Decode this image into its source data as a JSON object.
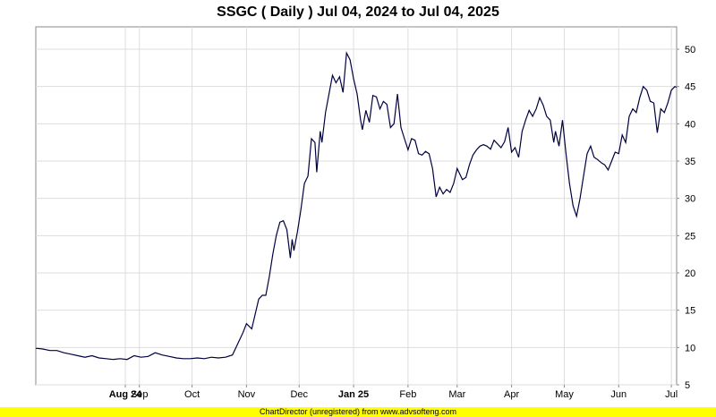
{
  "chart_data": {
    "type": "line",
    "title": "SSGC ( Daily ) Jul 04, 2024 to Jul 04, 2025",
    "xlabel": "",
    "ylabel": "",
    "ylim": [
      5,
      53
    ],
    "y_ticks": [
      5,
      10,
      15,
      20,
      25,
      30,
      35,
      40,
      45,
      50
    ],
    "x_ticks": [
      {
        "label": "Aug 24",
        "date": "2024-08-24",
        "bold": true
      },
      {
        "label": "Sep",
        "date": "2024-09-01",
        "bold": false
      },
      {
        "label": "Oct",
        "date": "2024-10-01",
        "bold": false
      },
      {
        "label": "Nov",
        "date": "2024-11-01",
        "bold": false
      },
      {
        "label": "Dec",
        "date": "2024-12-01",
        "bold": false
      },
      {
        "label": "Jan 25",
        "date": "2025-01-01",
        "bold": true
      },
      {
        "label": "Feb",
        "date": "2025-02-01",
        "bold": false
      },
      {
        "label": "Mar",
        "date": "2025-03-01",
        "bold": false
      },
      {
        "label": "Apr",
        "date": "2025-04-01",
        "bold": false
      },
      {
        "label": "May",
        "date": "2025-05-01",
        "bold": false
      },
      {
        "label": "Jun",
        "date": "2025-06-01",
        "bold": false
      },
      {
        "label": "Jul",
        "date": "2025-07-01",
        "bold": false
      }
    ],
    "x_range": [
      "2024-07-04",
      "2025-07-04"
    ],
    "grid": true,
    "series": [
      {
        "color": "#000040",
        "points": [
          [
            "2024-07-04",
            9.9
          ],
          [
            "2024-07-08",
            9.8
          ],
          [
            "2024-07-12",
            9.6
          ],
          [
            "2024-07-16",
            9.6
          ],
          [
            "2024-07-20",
            9.3
          ],
          [
            "2024-07-24",
            9.1
          ],
          [
            "2024-07-28",
            8.9
          ],
          [
            "2024-08-01",
            8.7
          ],
          [
            "2024-08-05",
            8.9
          ],
          [
            "2024-08-09",
            8.6
          ],
          [
            "2024-08-13",
            8.5
          ],
          [
            "2024-08-17",
            8.4
          ],
          [
            "2024-08-21",
            8.5
          ],
          [
            "2024-08-25",
            8.4
          ],
          [
            "2024-08-29",
            8.9
          ],
          [
            "2024-09-02",
            8.7
          ],
          [
            "2024-09-06",
            8.8
          ],
          [
            "2024-09-10",
            9.3
          ],
          [
            "2024-09-14",
            9.0
          ],
          [
            "2024-09-18",
            8.8
          ],
          [
            "2024-09-22",
            8.6
          ],
          [
            "2024-09-26",
            8.5
          ],
          [
            "2024-09-30",
            8.5
          ],
          [
            "2024-10-04",
            8.6
          ],
          [
            "2024-10-08",
            8.5
          ],
          [
            "2024-10-12",
            8.7
          ],
          [
            "2024-10-16",
            8.6
          ],
          [
            "2024-10-20",
            8.7
          ],
          [
            "2024-10-24",
            9.0
          ],
          [
            "2024-10-27",
            10.5
          ],
          [
            "2024-10-30",
            12.0
          ],
          [
            "2024-11-01",
            13.2
          ],
          [
            "2024-11-04",
            12.5
          ],
          [
            "2024-11-06",
            14.5
          ],
          [
            "2024-11-08",
            16.5
          ],
          [
            "2024-11-10",
            17.0
          ],
          [
            "2024-11-12",
            17.0
          ],
          [
            "2024-11-14",
            19.5
          ],
          [
            "2024-11-16",
            22.5
          ],
          [
            "2024-11-18",
            25.0
          ],
          [
            "2024-11-20",
            26.8
          ],
          [
            "2024-11-22",
            27.0
          ],
          [
            "2024-11-24",
            25.8
          ],
          [
            "2024-11-26",
            22.0
          ],
          [
            "2024-11-27",
            24.5
          ],
          [
            "2024-11-28",
            23.0
          ],
          [
            "2024-11-30",
            25.5
          ],
          [
            "2024-12-02",
            28.5
          ],
          [
            "2024-12-04",
            32.0
          ],
          [
            "2024-12-06",
            33.0
          ],
          [
            "2024-12-08",
            38.0
          ],
          [
            "2024-12-10",
            37.5
          ],
          [
            "2024-12-11",
            33.5
          ],
          [
            "2024-12-13",
            39.0
          ],
          [
            "2024-12-14",
            37.5
          ],
          [
            "2024-12-16",
            41.5
          ],
          [
            "2024-12-18",
            44.0
          ],
          [
            "2024-12-20",
            46.5
          ],
          [
            "2024-12-22",
            45.5
          ],
          [
            "2024-12-24",
            46.3
          ],
          [
            "2024-12-26",
            44.2
          ],
          [
            "2024-12-28",
            49.5
          ],
          [
            "2024-12-30",
            48.6
          ],
          [
            "2025-01-01",
            46.0
          ],
          [
            "2025-01-03",
            44.0
          ],
          [
            "2025-01-05",
            40.5
          ],
          [
            "2025-01-06",
            39.2
          ],
          [
            "2025-01-08",
            41.8
          ],
          [
            "2025-01-10",
            40.2
          ],
          [
            "2025-01-12",
            43.8
          ],
          [
            "2025-01-14",
            43.6
          ],
          [
            "2025-01-16",
            42.0
          ],
          [
            "2025-01-18",
            43.0
          ],
          [
            "2025-01-20",
            42.6
          ],
          [
            "2025-01-22",
            39.5
          ],
          [
            "2025-01-24",
            40.0
          ],
          [
            "2025-01-26",
            44.0
          ],
          [
            "2025-01-28",
            39.5
          ],
          [
            "2025-01-30",
            38.0
          ],
          [
            "2025-02-01",
            36.5
          ],
          [
            "2025-02-03",
            38.0
          ],
          [
            "2025-02-05",
            37.8
          ],
          [
            "2025-02-07",
            36.0
          ],
          [
            "2025-02-09",
            35.8
          ],
          [
            "2025-02-11",
            36.3
          ],
          [
            "2025-02-13",
            36.0
          ],
          [
            "2025-02-15",
            34.0
          ],
          [
            "2025-02-17",
            30.2
          ],
          [
            "2025-02-19",
            31.5
          ],
          [
            "2025-02-21",
            30.6
          ],
          [
            "2025-02-23",
            31.2
          ],
          [
            "2025-02-25",
            30.8
          ],
          [
            "2025-02-27",
            32.0
          ],
          [
            "2025-02-29",
            34.0
          ],
          [
            "2025-03-02",
            33.5
          ],
          [
            "2025-03-04",
            32.5
          ],
          [
            "2025-03-06",
            32.8
          ],
          [
            "2025-03-08",
            34.5
          ],
          [
            "2025-03-10",
            35.8
          ],
          [
            "2025-03-12",
            36.5
          ],
          [
            "2025-03-14",
            37.0
          ],
          [
            "2025-03-16",
            37.2
          ],
          [
            "2025-03-18",
            37.0
          ],
          [
            "2025-03-20",
            36.6
          ],
          [
            "2025-03-22",
            37.8
          ],
          [
            "2025-03-24",
            37.3
          ],
          [
            "2025-03-26",
            36.8
          ],
          [
            "2025-03-28",
            37.6
          ],
          [
            "2025-03-30",
            39.5
          ],
          [
            "2025-04-01",
            36.2
          ],
          [
            "2025-04-03",
            36.8
          ],
          [
            "2025-04-05",
            35.5
          ],
          [
            "2025-04-07",
            39.0
          ],
          [
            "2025-04-09",
            40.5
          ],
          [
            "2025-04-11",
            41.8
          ],
          [
            "2025-04-13",
            41.0
          ],
          [
            "2025-04-15",
            42.0
          ],
          [
            "2025-04-17",
            43.5
          ],
          [
            "2025-04-19",
            42.5
          ],
          [
            "2025-04-21",
            41.0
          ],
          [
            "2025-04-23",
            40.5
          ],
          [
            "2025-04-25",
            37.5
          ],
          [
            "2025-04-26",
            39.0
          ],
          [
            "2025-04-28",
            37.0
          ],
          [
            "2025-04-30",
            40.5
          ],
          [
            "2025-05-02",
            36.0
          ],
          [
            "2025-05-04",
            32.0
          ],
          [
            "2025-05-06",
            29.0
          ],
          [
            "2025-05-08",
            27.6
          ],
          [
            "2025-05-10",
            30.0
          ],
          [
            "2025-05-12",
            33.0
          ],
          [
            "2025-05-14",
            36.0
          ],
          [
            "2025-05-16",
            37.0
          ],
          [
            "2025-05-18",
            35.5
          ],
          [
            "2025-05-20",
            35.2
          ],
          [
            "2025-05-22",
            34.8
          ],
          [
            "2025-05-24",
            34.5
          ],
          [
            "2025-05-26",
            33.8
          ],
          [
            "2025-05-28",
            35.0
          ],
          [
            "2025-05-30",
            36.2
          ],
          [
            "2025-06-01",
            36.0
          ],
          [
            "2025-06-03",
            38.5
          ],
          [
            "2025-06-05",
            37.5
          ],
          [
            "2025-06-07",
            41.0
          ],
          [
            "2025-06-09",
            42.0
          ],
          [
            "2025-06-11",
            41.5
          ],
          [
            "2025-06-13",
            43.5
          ],
          [
            "2025-06-15",
            45.0
          ],
          [
            "2025-06-17",
            44.5
          ],
          [
            "2025-06-19",
            43.0
          ],
          [
            "2025-06-21",
            42.8
          ],
          [
            "2025-06-23",
            38.8
          ],
          [
            "2025-06-25",
            42.0
          ],
          [
            "2025-06-27",
            41.5
          ],
          [
            "2025-06-29",
            42.8
          ],
          [
            "2025-07-01",
            44.5
          ],
          [
            "2025-07-03",
            45.0
          ],
          [
            "2025-07-04",
            44.9
          ]
        ]
      }
    ]
  },
  "footer": {
    "text": "ChartDirector (unregistered) from www.advsofteng.com"
  }
}
